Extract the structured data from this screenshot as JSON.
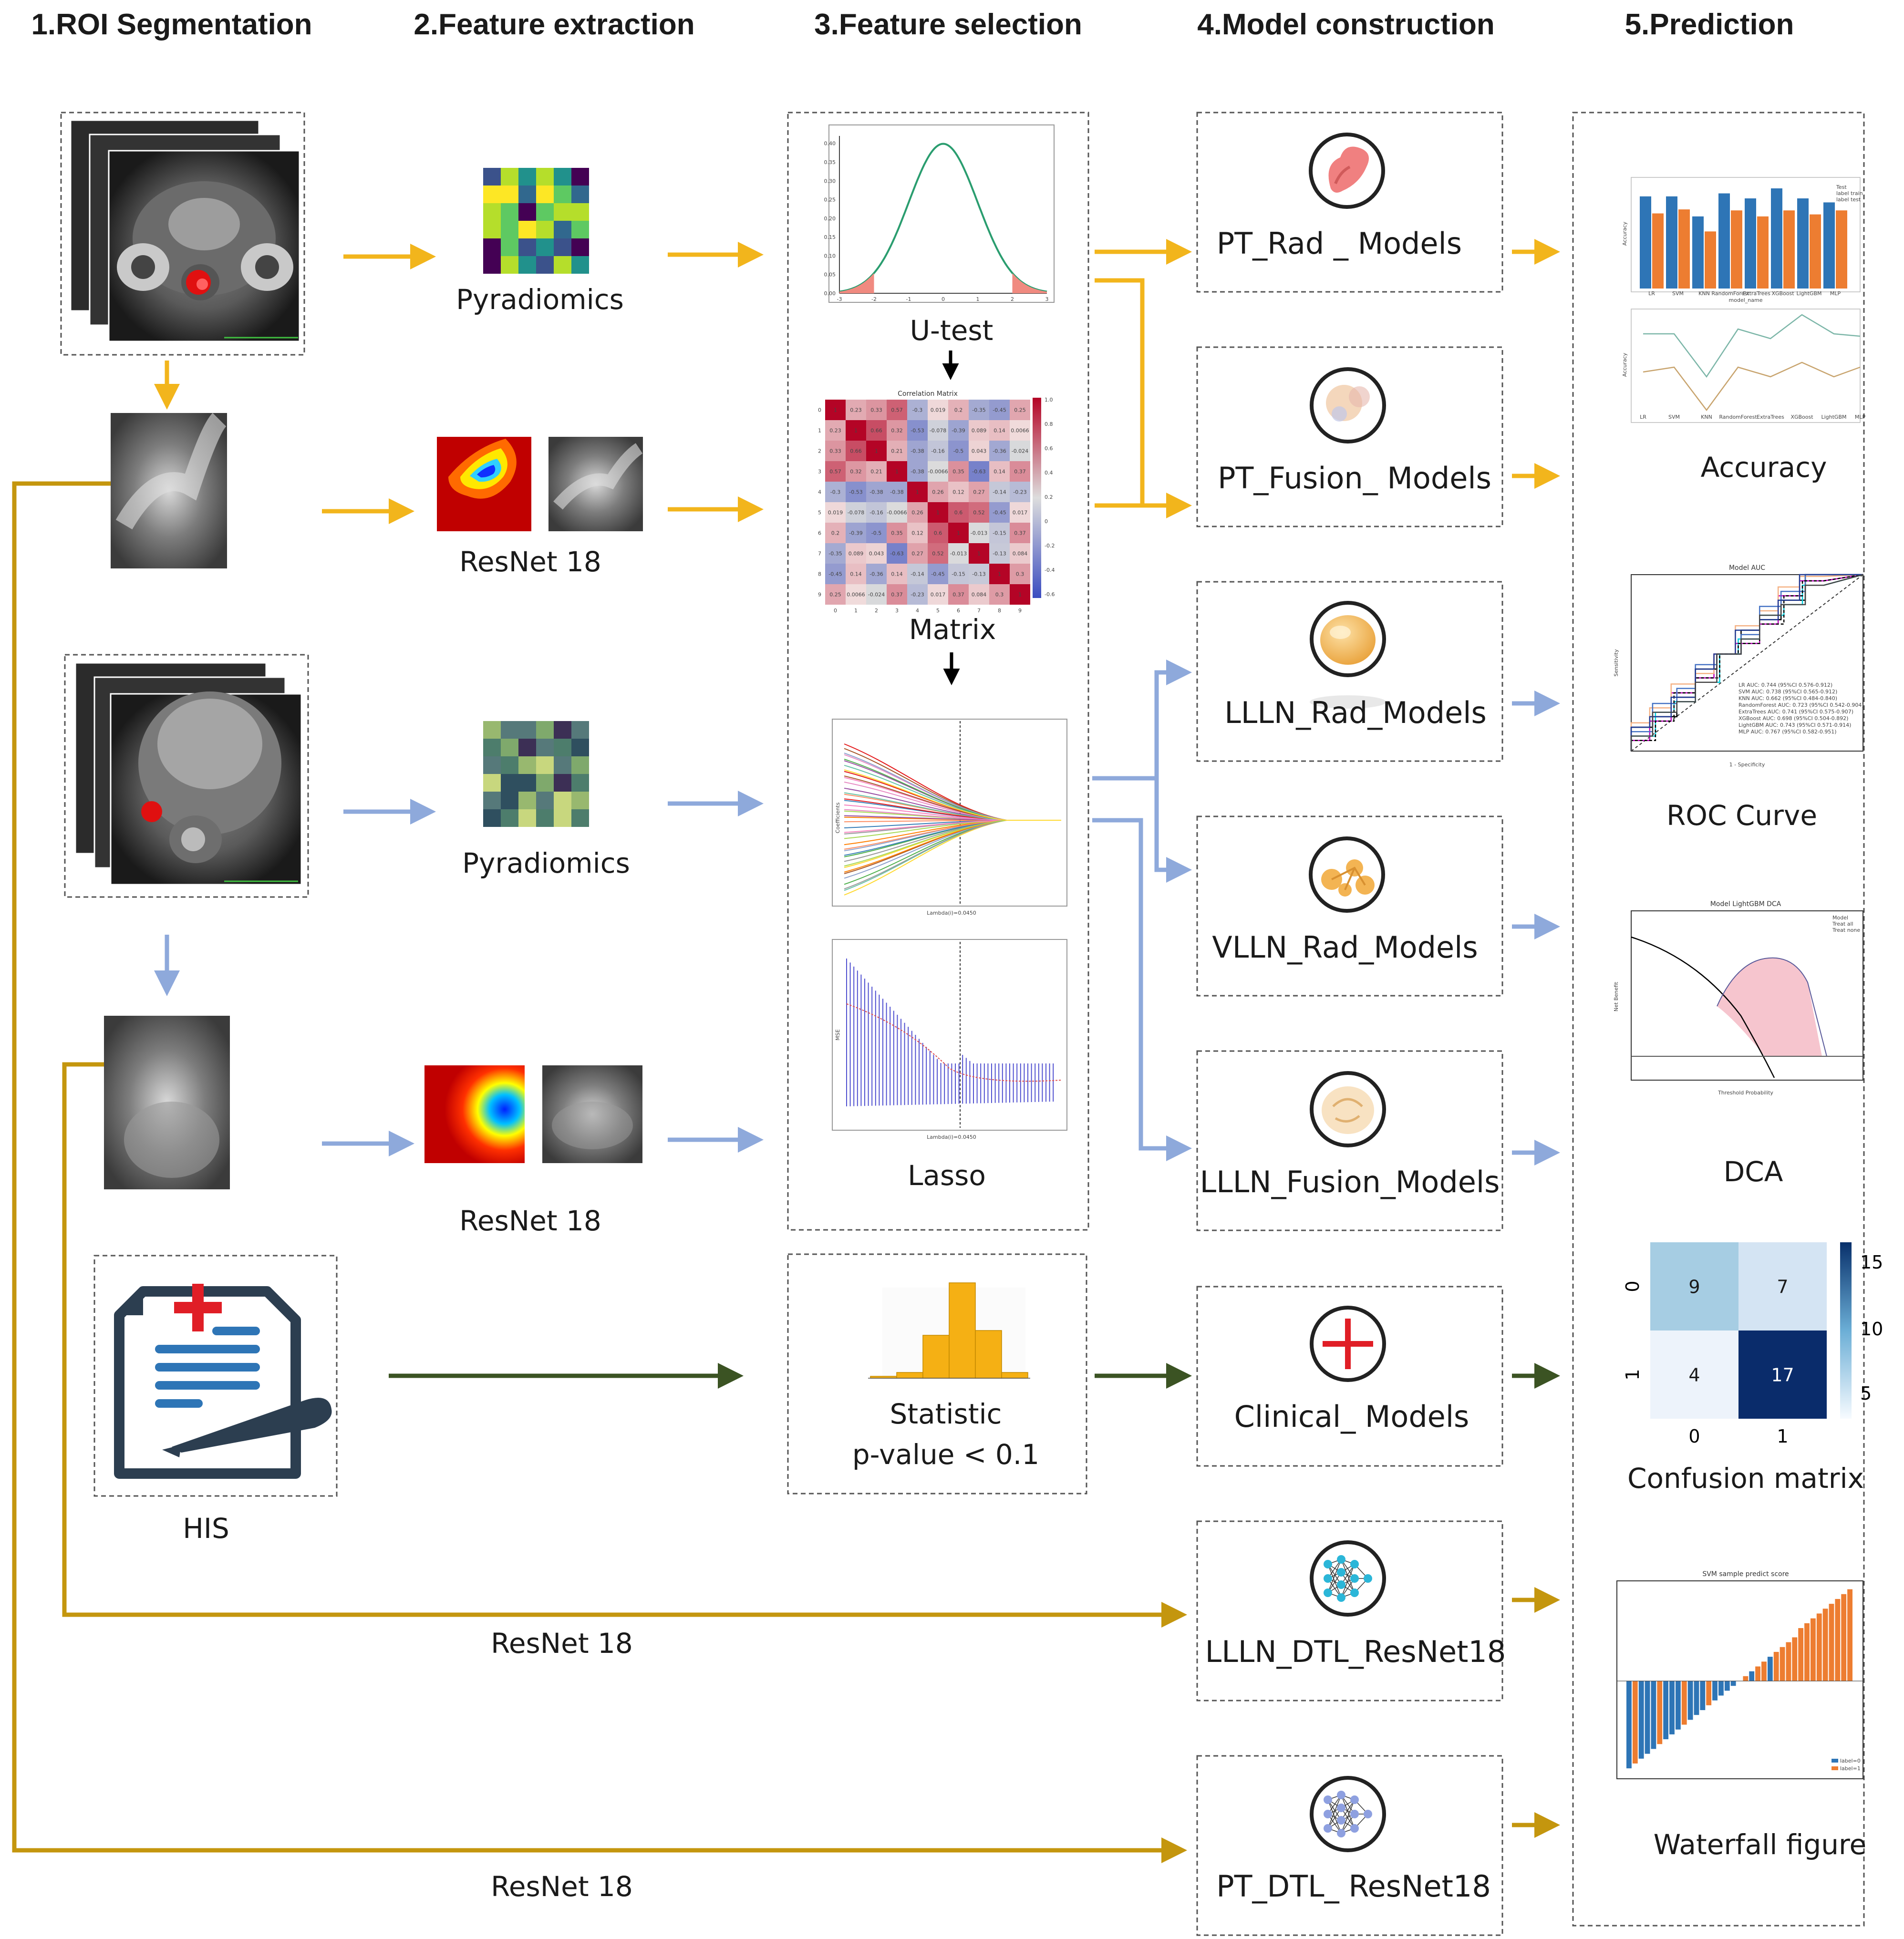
{
  "headers": [
    "1.ROI Segmentation",
    "2.Feature extraction",
    "3.Feature selection",
    "4.Model construction",
    "5.Prediction"
  ],
  "extraction_labels": {
    "pyradiomics_top": "Pyradiomics",
    "resnet_top": "ResNet 18",
    "pyradiomics_bottom": "Pyradiomics",
    "resnet_bottom": "ResNet 18",
    "his": "HIS"
  },
  "selection_labels": {
    "utest": "U-test",
    "matrix": "Matrix",
    "lasso": "Lasso",
    "statistic": "Statistic",
    "pvalue": "p-value < 0.1",
    "corr_title": "Correlation Matrix"
  },
  "models": [
    "PT_Rad _ Models",
    "PT_Fusion_ Models",
    "LLLN_Rad_Models",
    "VLLN_Rad_Models",
    "LLLN_Fusion_Models",
    "Clinical_ Models",
    "LLLN_DTL_ResNet18",
    "PT_DTL_ ResNet18"
  ],
  "prediction_labels": [
    "Accuracy",
    "ROC Curve",
    "DCA",
    "Confusion matrix",
    "Waterfall figure"
  ],
  "path_labels": [
    "ResNet 18",
    "ResNet 18"
  ],
  "mini": {
    "roc_title": "Model AUC",
    "roc_xlabel": "1 - Specificity",
    "roc_ylabel": "Sensitivity",
    "roc_legend": [
      "LR AUC: 0.744 (95%CI 0.576-0.912)",
      "SVM AUC: 0.738 (95%CI 0.565-0.912)",
      "KNN AUC: 0.662 (95%CI 0.484-0.840)",
      "RandomForest AUC: 0.723 (95%CI 0.542-0.904)",
      "ExtraTrees AUC: 0.741 (95%CI 0.575-0.907)",
      "XGBoost AUC: 0.698 (95%CI 0.504-0.892)",
      "LightGBM AUC: 0.743 (95%CI 0.571-0.914)",
      "MLP AUC: 0.767 (95%CI 0.582-0.951)"
    ],
    "dca_title": "Model LightGBM DCA",
    "dca_legend": [
      "Model",
      "Treat all",
      "Treat none"
    ],
    "dca_xlabel": "Threshold Probability",
    "dca_ylabel": "Net Benefit",
    "waterfall_title": "SVM sample predict score",
    "waterfall_legend": [
      "label=0",
      "label=1"
    ],
    "acc_ylabel": "Accuracy",
    "acc_xlabel": "model_name",
    "acc_legend": [
      "Test",
      "label train",
      "label test"
    ],
    "acc_models": [
      "LR",
      "SVM",
      "KNN",
      "RandomForest",
      "ExtraTrees",
      "XGBoost",
      "LightGBM",
      "MLP"
    ],
    "lasso_xlabel": "Lambda(i)=0.0450",
    "lasso_ylabel_top": "Coefficients",
    "lasso_ylabel_bottom": "MSE"
  },
  "confusion_matrix": {
    "cells": [
      [
        9,
        7
      ],
      [
        4,
        17
      ]
    ],
    "row_labels": [
      "0",
      "1"
    ],
    "col_labels": [
      "0",
      "1"
    ],
    "colorbar_ticks": [
      "15",
      "10",
      "5"
    ]
  },
  "colors": {
    "yellow_arrow": "#f2b51c",
    "blue_arrow": "#8ea9db",
    "green_arrow": "#3b5323",
    "gold_line": "#c4960e"
  }
}
